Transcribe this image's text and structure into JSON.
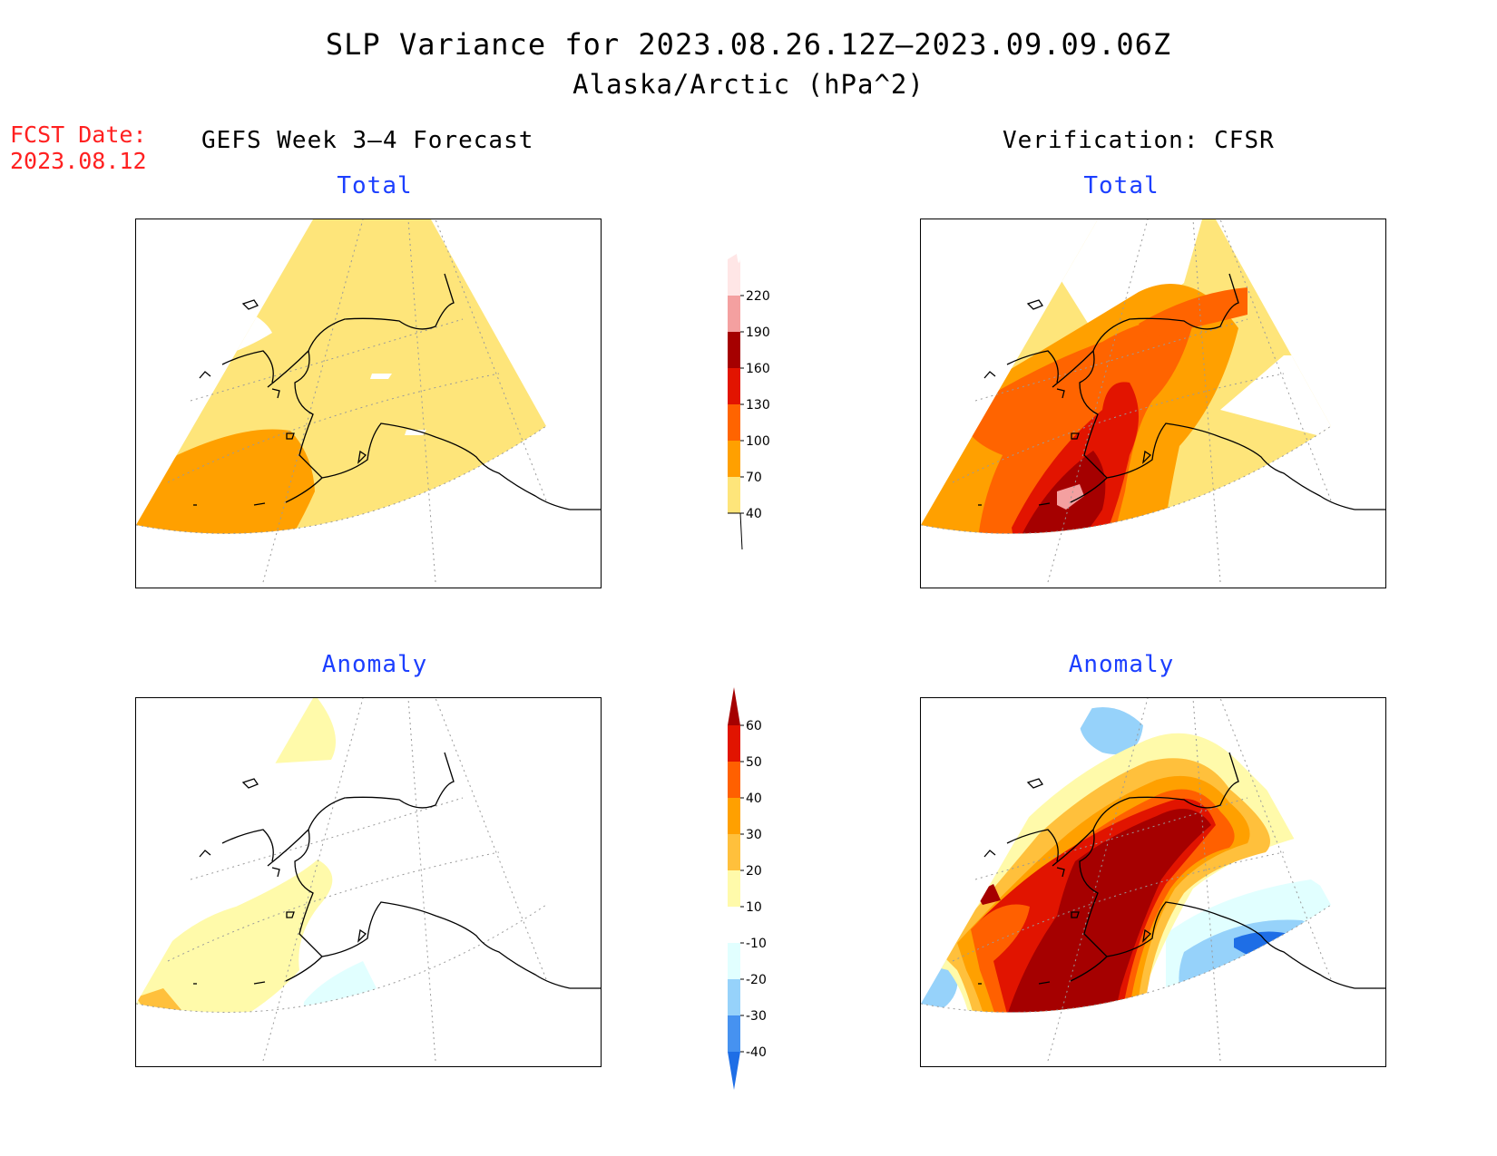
{
  "title": {
    "line1": "SLP Variance for 2023.08.26.12Z–2023.09.09.06Z",
    "line2": "Alaska/Arctic (hPa^2)"
  },
  "fcst_date": {
    "label": "FCST Date:",
    "value": "2023.08.12"
  },
  "columns": {
    "left_title": "GEFS Week 3–4 Forecast",
    "right_title": "Verification: CFSR"
  },
  "panels": {
    "top_left_label": "Total",
    "top_right_label": "Total",
    "bottom_left_label": "Anomaly",
    "bottom_right_label": "Anomaly"
  },
  "colorbar_total": {
    "levels": [
      "40",
      "70",
      "100",
      "130",
      "160",
      "190",
      "220"
    ],
    "colors": [
      "#fee57a",
      "#ffa000",
      "#ff6400",
      "#e21400",
      "#a50000",
      "#f4a0a0",
      "#ffe6e6"
    ],
    "below_color": "#ffffff"
  },
  "colorbar_anomaly": {
    "levels": [
      "-40",
      "-30",
      "-20",
      "-10",
      "10",
      "20",
      "30",
      "40",
      "50",
      "60"
    ],
    "colors": [
      "#1e6ee6",
      "#4692f0",
      "#96d2fa",
      "#e1ffff",
      "#ffffff",
      "#fffaaa",
      "#ffc03c",
      "#ffa000",
      "#ff6000",
      "#e11400",
      "#a50000"
    ]
  },
  "colors": {
    "subtitle_blue": "#1c3fff",
    "fcst_red": "#ff2020"
  }
}
